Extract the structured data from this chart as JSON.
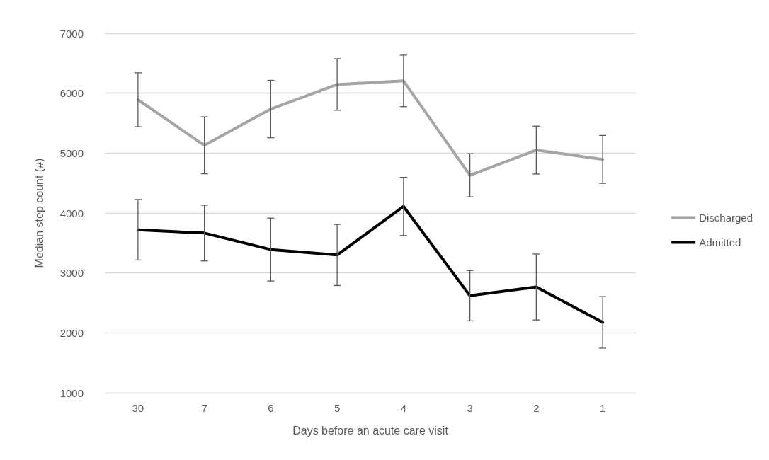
{
  "chart_data": {
    "type": "line",
    "xlabel": "Days before an acute care visit",
    "ylabel": "Median step count (#)",
    "categories": [
      "30",
      "7",
      "6",
      "5",
      "4",
      "3",
      "2",
      "1"
    ],
    "series": [
      {
        "name": "Discharged",
        "color": "#a5a5a5",
        "values": [
          5890,
          5130,
          5735,
          6145,
          6205,
          4630,
          5050,
          4895
        ],
        "errors": [
          450,
          475,
          480,
          430,
          430,
          360,
          400,
          400
        ]
      },
      {
        "name": "Admitted",
        "color": "#000000",
        "values": [
          3720,
          3665,
          3390,
          3300,
          4110,
          2620,
          2765,
          2175
        ],
        "errors": [
          505,
          465,
          525,
          510,
          485,
          420,
          550,
          430
        ]
      }
    ],
    "ylim": [
      1000,
      7000
    ],
    "yticks": [
      1000,
      2000,
      3000,
      4000,
      5000,
      6000,
      7000
    ],
    "grid": "y",
    "legend": "right",
    "marker": "none",
    "line_style": "solid"
  }
}
